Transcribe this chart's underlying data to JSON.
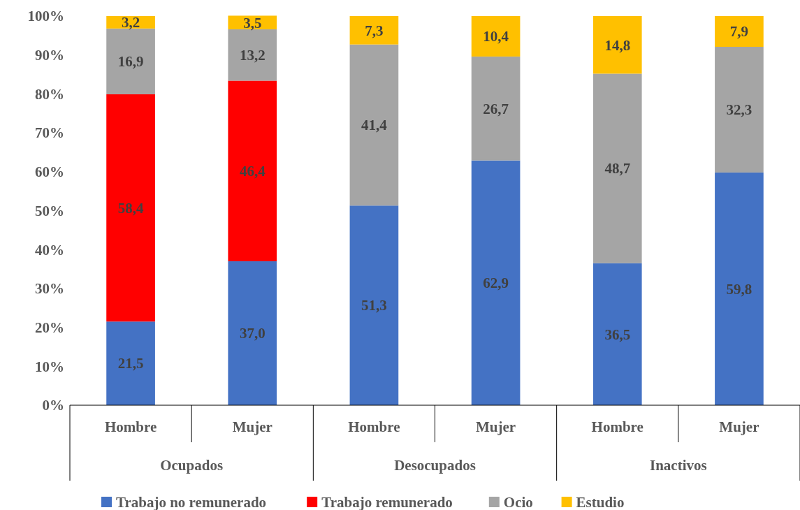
{
  "chart_data": {
    "type": "bar",
    "stacked": true,
    "categories": [
      "Hombre",
      "Mujer",
      "Hombre",
      "Mujer",
      "Hombre",
      "Mujer"
    ],
    "series": [
      {
        "name": "Trabajo no remunerado",
        "color": "#4472c4",
        "values": [
          21.5,
          37.0,
          51.3,
          62.9,
          36.5,
          59.8
        ],
        "value_labels": [
          "21,5",
          "37,0",
          "51,3",
          "62,9",
          "36,5",
          "59,8"
        ]
      },
      {
        "name": "Trabajo remunerado",
        "color": "#ff0000",
        "values": [
          58.4,
          46.4,
          null,
          null,
          null,
          null
        ],
        "value_labels": [
          "58,4",
          "46,4",
          null,
          null,
          null,
          null
        ]
      },
      {
        "name": "Ocio",
        "color": "#a5a5a5",
        "values": [
          16.9,
          13.2,
          41.4,
          26.7,
          48.7,
          32.3
        ],
        "value_labels": [
          "16,9",
          "13,2",
          "41,4",
          "26,7",
          "48,7",
          "32,3"
        ]
      },
      {
        "name": "Estudio",
        "color": "#ffc000",
        "values": [
          3.2,
          3.5,
          7.3,
          10.4,
          14.8,
          7.9
        ],
        "value_labels": [
          "3,2",
          "3,5",
          "7,3",
          "10,4",
          "14,8",
          "7,9"
        ]
      }
    ],
    "annotations": [
      "Ocupados",
      "Desocupados",
      "Inactivos"
    ],
    "ylim": [
      0,
      100
    ],
    "yticks": [
      {
        "value": 0,
        "label": "0%"
      },
      {
        "value": 10,
        "label": "10%"
      },
      {
        "value": 20,
        "label": "20%"
      },
      {
        "value": 30,
        "label": "30%"
      },
      {
        "value": 40,
        "label": "40%"
      },
      {
        "value": 50,
        "label": "50%"
      },
      {
        "value": 60,
        "label": "60%"
      },
      {
        "value": 70,
        "label": "70%"
      },
      {
        "value": 80,
        "label": "80%"
      },
      {
        "value": 90,
        "label": "90%"
      },
      {
        "value": 100,
        "label": "100%"
      }
    ],
    "legend": "bottom"
  }
}
